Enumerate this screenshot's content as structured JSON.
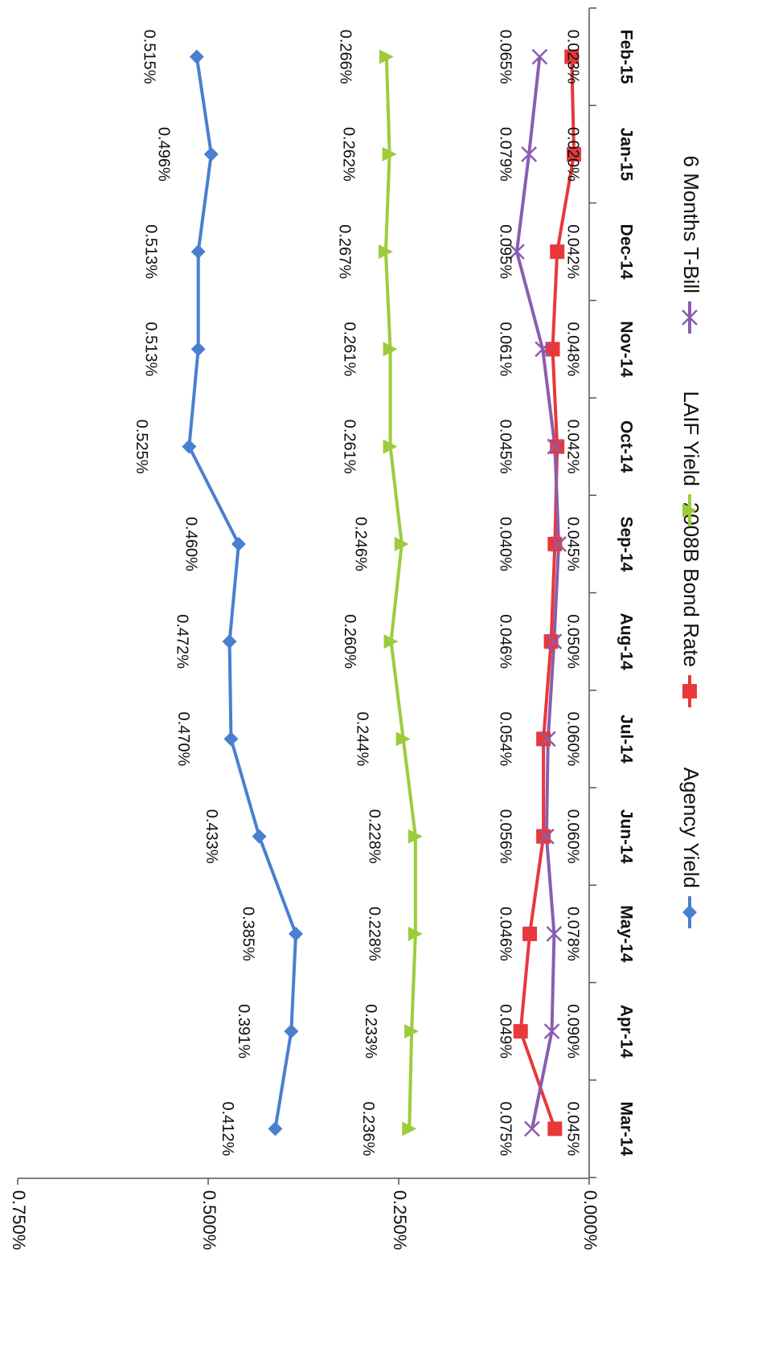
{
  "chart_data": {
    "type": "line",
    "categories": [
      "Mar-14",
      "Apr-14",
      "May-14",
      "Jun-14",
      "Jul-14",
      "Aug-14",
      "Sep-14",
      "Oct-14",
      "Nov-14",
      "Dec-14",
      "Jan-15",
      "Feb-15"
    ],
    "series": [
      {
        "name": "Agency Yield",
        "color": "#4a7fd0",
        "marker": "diamond",
        "values": [
          0.412,
          0.391,
          0.385,
          0.433,
          0.47,
          0.472,
          0.46,
          0.525,
          0.513,
          0.513,
          0.496,
          0.515
        ],
        "labels": [
          "0.412%",
          "0.391%",
          "0.385%",
          "0.433%",
          "0.470%",
          "0.472%",
          "0.460%",
          "0.525%",
          "0.513%",
          "0.513%",
          "0.496%",
          "0.515%"
        ]
      },
      {
        "name": "2008B Bond Rate",
        "color": "#e8383b",
        "marker": "square",
        "values": [
          0.045,
          0.09,
          0.078,
          0.06,
          0.06,
          0.05,
          0.045,
          0.042,
          0.048,
          0.042,
          0.02,
          0.023
        ],
        "labels": [
          "0.045%",
          "0.090%",
          "0.078%",
          "0.060%",
          "0.060%",
          "0.050%",
          "0.045%",
          "0.042%",
          "0.048%",
          "0.042%",
          "0.020%",
          "0.023%"
        ]
      },
      {
        "name": "LAIF Yield",
        "color": "#9ccc3c",
        "marker": "triangle",
        "values": [
          0.236,
          0.233,
          0.228,
          0.228,
          0.244,
          0.26,
          0.246,
          0.261,
          0.261,
          0.267,
          0.262,
          0.266
        ],
        "labels": [
          "0.236%",
          "0.233%",
          "0.228%",
          "0.228%",
          "0.244%",
          "0.260%",
          "0.246%",
          "0.261%",
          "0.261%",
          "0.267%",
          "0.262%",
          "0.266%"
        ]
      },
      {
        "name": "6 Months T-Bill",
        "color": "#8a5db0",
        "marker": "x",
        "values": [
          0.075,
          0.049,
          0.046,
          0.056,
          0.054,
          0.046,
          0.04,
          0.045,
          0.061,
          0.095,
          0.079,
          0.065
        ],
        "labels": [
          "0.075%",
          "0.049%",
          "0.046%",
          "0.056%",
          "0.054%",
          "0.046%",
          "0.040%",
          "0.045%",
          "0.061%",
          "0.095%",
          "0.079%",
          "0.065%"
        ]
      }
    ],
    "yticks": [
      0.0,
      0.25,
      0.5,
      0.75
    ],
    "ytick_labels": [
      "0.000%",
      "0.250%",
      "0.500%",
      "0.750%"
    ],
    "ylim": [
      0,
      0.75
    ],
    "grid": false,
    "orientation": "rotated 90 degrees clockwise (page viewed sideways)",
    "legend_position": "bottom"
  }
}
